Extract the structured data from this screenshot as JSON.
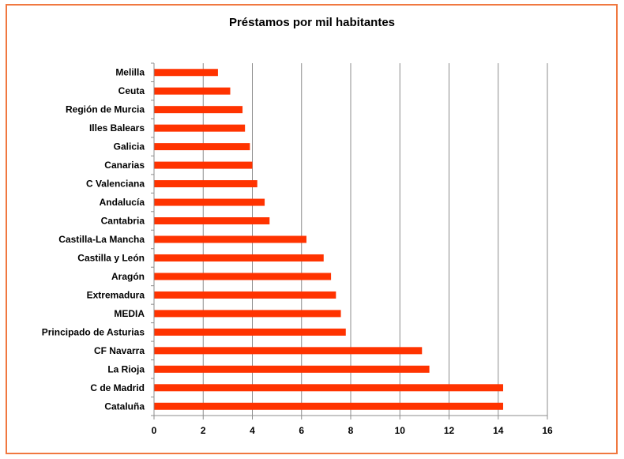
{
  "chart_data": {
    "type": "bar",
    "orientation": "horizontal",
    "title": "Préstamos por mil habitantes",
    "xlabel": "",
    "ylabel": "",
    "categories": [
      "Melilla",
      "Ceuta",
      "Región de Murcia",
      "Illes Balears",
      "Galicia",
      "Canarias",
      "C Valenciana",
      "Andalucía",
      "Cantabria",
      "Castilla-La Mancha",
      "Castilla y León",
      "Aragón",
      "Extremadura",
      "MEDIA",
      "Principado de Asturias",
      "CF Navarra",
      "La Rioja",
      "C de Madrid",
      "Cataluña"
    ],
    "values": [
      2.6,
      3.1,
      3.6,
      3.7,
      3.9,
      4.0,
      4.2,
      4.5,
      4.7,
      6.2,
      6.9,
      7.2,
      7.4,
      7.6,
      7.8,
      10.9,
      11.2,
      14.2,
      14.2
    ],
    "xlim": [
      0,
      16
    ],
    "xticks": [
      "0",
      "2",
      "4",
      "6",
      "8",
      "10",
      "12",
      "14",
      "16"
    ],
    "grid": true,
    "legend": "none",
    "bar_color": "#ff3300",
    "frame_color": "#f07840"
  }
}
